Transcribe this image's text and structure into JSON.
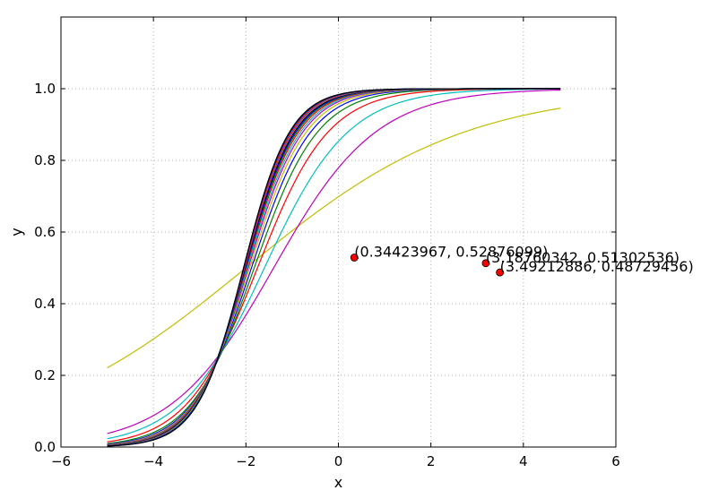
{
  "chart_data": {
    "type": "line",
    "title": "",
    "xlabel": "x",
    "ylabel": "y",
    "xlim": [
      -6,
      6
    ],
    "ylim": [
      0.0,
      1.2
    ],
    "x_ticks": [
      -6,
      -4,
      -2,
      0,
      2,
      4,
      6
    ],
    "x_tick_labels": [
      "−6",
      "−4",
      "−2",
      "0",
      "2",
      "4",
      "6"
    ],
    "y_ticks": [
      0.0,
      0.2,
      0.4,
      0.6,
      0.8,
      1.0
    ],
    "y_tick_labels": [
      "0.0",
      "0.2",
      "0.4",
      "0.6",
      "0.8",
      "1.0"
    ],
    "grid": true,
    "grid_style": "dotted",
    "x_range": [
      -5.0,
      4.8
    ],
    "curve_model": "logistic: y = 1 / (1 + exp(-k*(x - x0)))",
    "series": [
      {
        "color": "#bfbf00",
        "k": 0.42,
        "x0": -2.0
      },
      {
        "color": "#bf00bf",
        "k": 0.9,
        "x0": -1.4
      },
      {
        "color": "#00bfbf",
        "k": 1.1,
        "x0": -1.6
      },
      {
        "color": "#ff0000",
        "k": 1.3,
        "x0": -1.75
      },
      {
        "color": "#008000",
        "k": 1.45,
        "x0": -1.82
      },
      {
        "color": "#0000ff",
        "k": 1.55,
        "x0": -1.88
      },
      {
        "color": "#bfbf00",
        "k": 1.62,
        "x0": -1.92
      },
      {
        "color": "#bf00bf",
        "k": 1.68,
        "x0": -1.95
      },
      {
        "color": "#00bfbf",
        "k": 1.72,
        "x0": -1.97
      },
      {
        "color": "#ff0000",
        "k": 1.76,
        "x0": -1.99
      },
      {
        "color": "#008000",
        "k": 1.8,
        "x0": -2.0
      },
      {
        "color": "#0000ff",
        "k": 1.83,
        "x0": -2.01
      },
      {
        "color": "#000000",
        "k": 1.86,
        "x0": -2.02
      },
      {
        "color": "#bfbf00",
        "k": 1.89,
        "x0": -2.03
      },
      {
        "color": "#bf00bf",
        "k": 1.91,
        "x0": -2.03
      },
      {
        "color": "#00bfbf",
        "k": 1.93,
        "x0": -2.04
      },
      {
        "color": "#ff0000",
        "k": 1.95,
        "x0": -2.04
      },
      {
        "color": "#008000",
        "k": 1.97,
        "x0": -2.05
      },
      {
        "color": "#0000ff",
        "k": 1.98,
        "x0": -2.05
      },
      {
        "color": "#000000",
        "k": 2.0,
        "x0": -2.05
      }
    ],
    "points": [
      {
        "x": 0.34423967,
        "y": 0.52876099,
        "label": "(0.34423967, 0.52876099)",
        "color": "#ff0000"
      },
      {
        "x": 3.18760342,
        "y": 0.51302536,
        "label": "(3.18760342, 0.51302536)",
        "color": "#ff0000"
      },
      {
        "x": 3.49212886,
        "y": 0.48729456,
        "label": "(3.49212886, 0.48729456)",
        "color": "#ff0000"
      }
    ]
  }
}
